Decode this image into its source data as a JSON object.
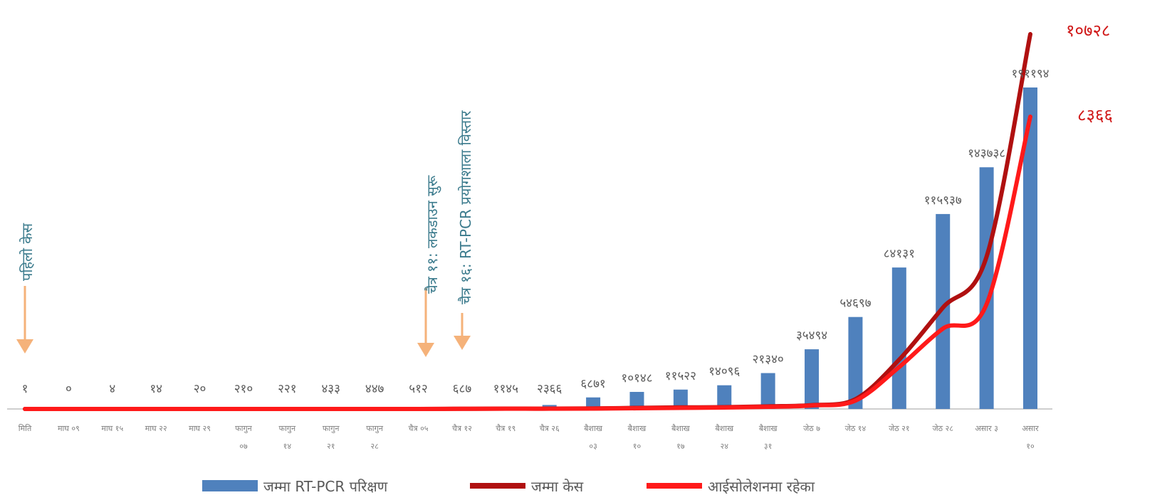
{
  "chart_data": {
    "type": "bar",
    "categories": [
      "मिति",
      "माघ ०९",
      "माघ १५",
      "माघ २२",
      "माघ २९",
      "फागुन ०७",
      "फागुन १४",
      "फागुन २१",
      "फागुन २८",
      "चैत्र ०५",
      "चैत्र १२",
      "चैत्र १९",
      "चैत्र २६",
      "बैशाख ०३",
      "बैशाख १०",
      "बैशाख १७",
      "बैशाख २४",
      "बैशाख ३१",
      "जेठ ७",
      "जेठ १४",
      "जेठ २१",
      "जेठ २८",
      "असार ३",
      "असार १०"
    ],
    "category_lines": [
      [
        "मिति"
      ],
      [
        "माघ ०९"
      ],
      [
        "माघ १५"
      ],
      [
        "माघ २२"
      ],
      [
        "माघ २९"
      ],
      [
        "फागुन",
        "०७"
      ],
      [
        "फागुन",
        "१४"
      ],
      [
        "फागुन",
        "२१"
      ],
      [
        "फागुन",
        "२८"
      ],
      [
        "चैत्र ०५"
      ],
      [
        "चैत्र १२"
      ],
      [
        "चैत्र १९"
      ],
      [
        "चैत्र २६"
      ],
      [
        "बैशाख",
        "०३"
      ],
      [
        "बैशाख",
        "१०"
      ],
      [
        "बैशाख",
        "१७"
      ],
      [
        "बैशाख",
        "२४"
      ],
      [
        "बैशाख",
        "३१"
      ],
      [
        "जेठ ७"
      ],
      [
        "जेठ १४"
      ],
      [
        "जेठ २१"
      ],
      [
        "जेठ २८"
      ],
      [
        "असार ३"
      ],
      [
        "असार",
        "१०"
      ]
    ],
    "series": [
      {
        "name": "जम्मा RT-PCR परिक्षण",
        "kind": "bar",
        "color": "#4f81bd",
        "values": [
          1,
          0,
          4,
          14,
          20,
          210,
          221,
          433,
          447,
          512,
          687,
          1145,
          2366,
          6871,
          10148,
          11522,
          14096,
          21340,
          35494,
          54697,
          84131,
          115937,
          143738,
          191194
        ],
        "labels": [
          "१",
          "०",
          "४",
          "१४",
          "२०",
          "२१०",
          "२२१",
          "४३३",
          "४४७",
          "५१२",
          "६८७",
          "११४५",
          "२३६६",
          "६८७१",
          "१०१४८",
          "११५२२",
          "१४०९६",
          "२१३४०",
          "३५४९४",
          "५४६९७",
          "८४१३१",
          "११५९३७",
          "१४३७३८",
          "१९११९४"
        ]
      },
      {
        "name": "जम्मा केस",
        "kind": "line",
        "color": "#b01010",
        "values": [
          1,
          1,
          1,
          1,
          1,
          1,
          1,
          1,
          1,
          1,
          5,
          9,
          9,
          14,
          31,
          45,
          50,
          75,
          110,
          280,
          1410,
          2900,
          4360,
          10728
        ],
        "end_label": "१०७२८"
      },
      {
        "name": "आईसोलेशनमा रहेका",
        "kind": "line",
        "color": "#ff1a1a",
        "values": [
          1,
          1,
          1,
          1,
          1,
          1,
          1,
          1,
          1,
          1,
          4,
          8,
          8,
          10,
          20,
          30,
          40,
          60,
          100,
          240,
          1200,
          2300,
          3000,
          8366
        ],
        "end_label": "८३६६"
      }
    ],
    "annotations": [
      {
        "text": "पहिलो केस",
        "category_index": 0
      },
      {
        "text": "चैत्र ११: लकडाउन सुरू",
        "category_index": 9
      },
      {
        "text": "चैत्र १६: RT-PCR प्रयोगशाला विस्तार",
        "category_index": 10
      }
    ],
    "colors": {
      "annotation_text": "#3a7a8c",
      "arrow": "#f5b27a",
      "end_label": "#d01818",
      "axis": "#bfbfbf",
      "label_text": "#595959"
    }
  }
}
